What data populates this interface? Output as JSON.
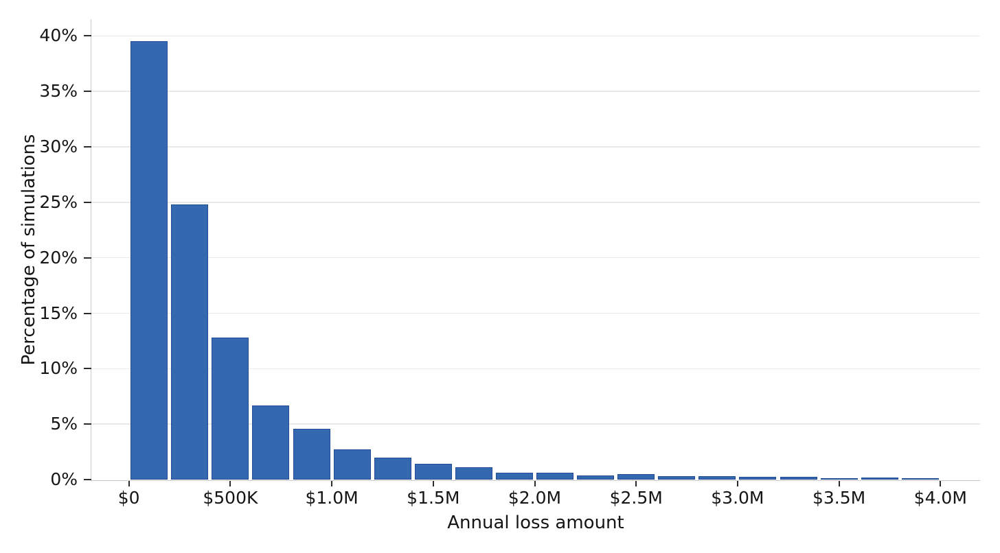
{
  "chart_data": {
    "type": "bar",
    "subtype": "histogram",
    "title": "",
    "xlabel": "Annual loss amount",
    "ylabel": "Percentage of simulations",
    "bin_width_dollars": 200000,
    "bin_edges_dollars": [
      0,
      200000,
      400000,
      600000,
      800000,
      1000000,
      1200000,
      1400000,
      1600000,
      1800000,
      2000000,
      2200000,
      2400000,
      2600000,
      2800000,
      3000000,
      3200000,
      3400000,
      3600000,
      3800000,
      4000000
    ],
    "values_percent": [
      39.5,
      24.8,
      12.8,
      6.7,
      4.6,
      2.7,
      2.0,
      1.4,
      1.1,
      0.65,
      0.6,
      0.4,
      0.5,
      0.3,
      0.3,
      0.25,
      0.25,
      0.15,
      0.2,
      0.1
    ],
    "x_tick_dollars": [
      0,
      500000,
      1000000,
      1500000,
      2000000,
      2500000,
      3000000,
      3500000,
      4000000
    ],
    "x_tick_labels": [
      "$0",
      "$500K",
      "$1.0M",
      "$1.5M",
      "$2.0M",
      "$2.5M",
      "$3.0M",
      "$3.5M",
      "$4.0M"
    ],
    "y_tick_values": [
      0,
      5,
      10,
      15,
      20,
      25,
      30,
      35,
      40
    ],
    "y_tick_labels": [
      "0%",
      "5%",
      "10%",
      "15%",
      "20%",
      "25%",
      "30%",
      "35%",
      "40%"
    ],
    "ylim": [
      0,
      41.5
    ],
    "xlim_dollars": [
      -185000,
      4195000
    ],
    "grid": "horizontal-only",
    "legend": "none",
    "colors": {
      "bar_fill": "#3568b0",
      "bar_edge": "#1f4e94",
      "grid": "#e9e9e9",
      "spine": "#c9c9c9",
      "tick": "#2b2b2b",
      "text": "#151515",
      "background": "#ffffff"
    }
  }
}
